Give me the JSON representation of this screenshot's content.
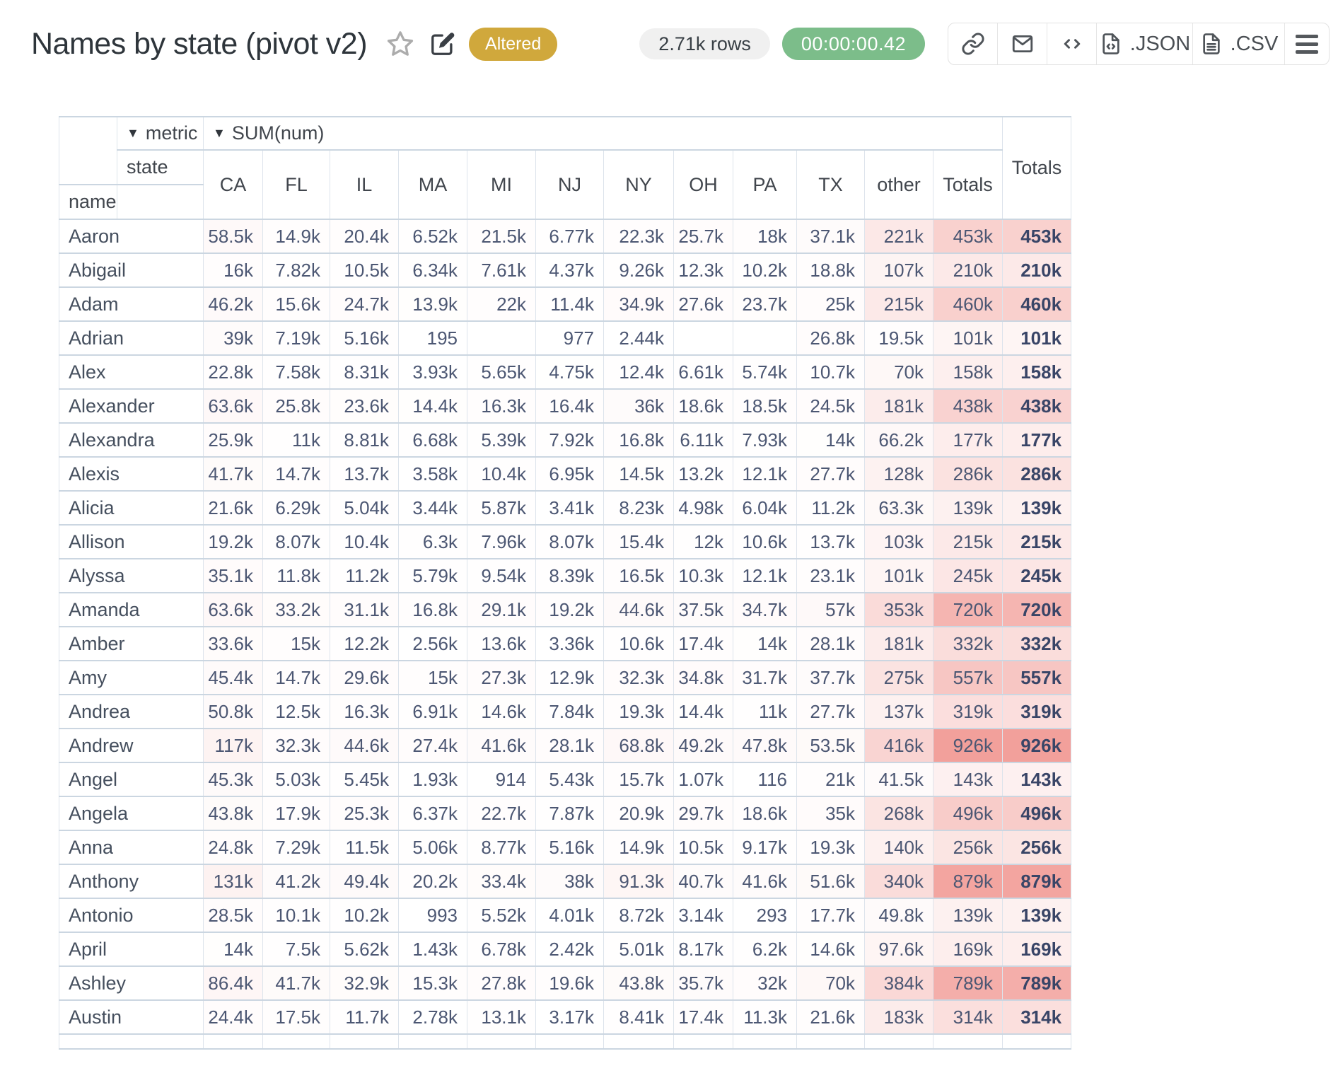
{
  "header": {
    "title": "Names by state (pivot v2)",
    "altered_badge": "Altered",
    "rows_pill": "2.71k rows",
    "timer_pill": "00:00:00.42",
    "export_json_label": ".JSON",
    "export_csv_label": ".CSV"
  },
  "colors": {
    "altered_badge_bg": "#D0A83C",
    "timer_pill_bg": "#7CBD8A",
    "heat_max": "#F2A09B",
    "grid_border": "#CBD6E1"
  },
  "pivot": {
    "caret": "▼",
    "metric_label": "metric",
    "value_label": "SUM(num)",
    "col_dim": "state",
    "row_dim": "name",
    "grand_total_label": "Totals",
    "columns": [
      "CA",
      "FL",
      "IL",
      "MA",
      "MI",
      "NJ",
      "NY",
      "OH",
      "PA",
      "TX",
      "other",
      "Totals"
    ],
    "rows": [
      {
        "name": "Aaron",
        "values": [
          "58.5k",
          "14.9k",
          "20.4k",
          "6.52k",
          "21.5k",
          "6.77k",
          "22.3k",
          "25.7k",
          "18k",
          "37.1k",
          "221k",
          "453k"
        ],
        "total": "453k"
      },
      {
        "name": "Abigail",
        "values": [
          "16k",
          "7.82k",
          "10.5k",
          "6.34k",
          "7.61k",
          "4.37k",
          "9.26k",
          "12.3k",
          "10.2k",
          "18.8k",
          "107k",
          "210k"
        ],
        "total": "210k"
      },
      {
        "name": "Adam",
        "values": [
          "46.2k",
          "15.6k",
          "24.7k",
          "13.9k",
          "22k",
          "11.4k",
          "34.9k",
          "27.6k",
          "23.7k",
          "25k",
          "215k",
          "460k"
        ],
        "total": "460k"
      },
      {
        "name": "Adrian",
        "values": [
          "39k",
          "7.19k",
          "5.16k",
          "195",
          "",
          "977",
          "2.44k",
          "",
          "",
          "26.8k",
          "19.5k",
          "101k"
        ],
        "total": "101k"
      },
      {
        "name": "Alex",
        "values": [
          "22.8k",
          "7.58k",
          "8.31k",
          "3.93k",
          "5.65k",
          "4.75k",
          "12.4k",
          "6.61k",
          "5.74k",
          "10.7k",
          "70k",
          "158k"
        ],
        "total": "158k"
      },
      {
        "name": "Alexander",
        "values": [
          "63.6k",
          "25.8k",
          "23.6k",
          "14.4k",
          "16.3k",
          "16.4k",
          "36k",
          "18.6k",
          "18.5k",
          "24.5k",
          "181k",
          "438k"
        ],
        "total": "438k"
      },
      {
        "name": "Alexandra",
        "values": [
          "25.9k",
          "11k",
          "8.81k",
          "6.68k",
          "5.39k",
          "7.92k",
          "16.8k",
          "6.11k",
          "7.93k",
          "14k",
          "66.2k",
          "177k"
        ],
        "total": "177k"
      },
      {
        "name": "Alexis",
        "values": [
          "41.7k",
          "14.7k",
          "13.7k",
          "3.58k",
          "10.4k",
          "6.95k",
          "14.5k",
          "13.2k",
          "12.1k",
          "27.7k",
          "128k",
          "286k"
        ],
        "total": "286k"
      },
      {
        "name": "Alicia",
        "values": [
          "21.6k",
          "6.29k",
          "5.04k",
          "3.44k",
          "5.87k",
          "3.41k",
          "8.23k",
          "4.98k",
          "6.04k",
          "11.2k",
          "63.3k",
          "139k"
        ],
        "total": "139k"
      },
      {
        "name": "Allison",
        "values": [
          "19.2k",
          "8.07k",
          "10.4k",
          "6.3k",
          "7.96k",
          "8.07k",
          "15.4k",
          "12k",
          "10.6k",
          "13.7k",
          "103k",
          "215k"
        ],
        "total": "215k"
      },
      {
        "name": "Alyssa",
        "values": [
          "35.1k",
          "11.8k",
          "11.2k",
          "5.79k",
          "9.54k",
          "8.39k",
          "16.5k",
          "10.3k",
          "12.1k",
          "23.1k",
          "101k",
          "245k"
        ],
        "total": "245k"
      },
      {
        "name": "Amanda",
        "values": [
          "63.6k",
          "33.2k",
          "31.1k",
          "16.8k",
          "29.1k",
          "19.2k",
          "44.6k",
          "37.5k",
          "34.7k",
          "57k",
          "353k",
          "720k"
        ],
        "total": "720k"
      },
      {
        "name": "Amber",
        "values": [
          "33.6k",
          "15k",
          "12.2k",
          "2.56k",
          "13.6k",
          "3.36k",
          "10.6k",
          "17.4k",
          "14k",
          "28.1k",
          "181k",
          "332k"
        ],
        "total": "332k"
      },
      {
        "name": "Amy",
        "values": [
          "45.4k",
          "14.7k",
          "29.6k",
          "15k",
          "27.3k",
          "12.9k",
          "32.3k",
          "34.8k",
          "31.7k",
          "37.7k",
          "275k",
          "557k"
        ],
        "total": "557k"
      },
      {
        "name": "Andrea",
        "values": [
          "50.8k",
          "12.5k",
          "16.3k",
          "6.91k",
          "14.6k",
          "7.84k",
          "19.3k",
          "14.4k",
          "11k",
          "27.7k",
          "137k",
          "319k"
        ],
        "total": "319k"
      },
      {
        "name": "Andrew",
        "values": [
          "117k",
          "32.3k",
          "44.6k",
          "27.4k",
          "41.6k",
          "28.1k",
          "68.8k",
          "49.2k",
          "47.8k",
          "53.5k",
          "416k",
          "926k"
        ],
        "total": "926k"
      },
      {
        "name": "Angel",
        "values": [
          "45.3k",
          "5.03k",
          "5.45k",
          "1.93k",
          "914",
          "5.43k",
          "15.7k",
          "1.07k",
          "116",
          "21k",
          "41.5k",
          "143k"
        ],
        "total": "143k"
      },
      {
        "name": "Angela",
        "values": [
          "43.8k",
          "17.9k",
          "25.3k",
          "6.37k",
          "22.7k",
          "7.87k",
          "20.9k",
          "29.7k",
          "18.6k",
          "35k",
          "268k",
          "496k"
        ],
        "total": "496k"
      },
      {
        "name": "Anna",
        "values": [
          "24.8k",
          "7.29k",
          "11.5k",
          "5.06k",
          "8.77k",
          "5.16k",
          "14.9k",
          "10.5k",
          "9.17k",
          "19.3k",
          "140k",
          "256k"
        ],
        "total": "256k"
      },
      {
        "name": "Anthony",
        "values": [
          "131k",
          "41.2k",
          "49.4k",
          "20.2k",
          "33.4k",
          "38k",
          "91.3k",
          "40.7k",
          "41.6k",
          "51.6k",
          "340k",
          "879k"
        ],
        "total": "879k"
      },
      {
        "name": "Antonio",
        "values": [
          "28.5k",
          "10.1k",
          "10.2k",
          "993",
          "5.52k",
          "4.01k",
          "8.72k",
          "3.14k",
          "293",
          "17.7k",
          "49.8k",
          "139k"
        ],
        "total": "139k"
      },
      {
        "name": "April",
        "values": [
          "14k",
          "7.5k",
          "5.62k",
          "1.43k",
          "6.78k",
          "2.42k",
          "5.01k",
          "8.17k",
          "6.2k",
          "14.6k",
          "97.6k",
          "169k"
        ],
        "total": "169k"
      },
      {
        "name": "Ashley",
        "values": [
          "86.4k",
          "41.7k",
          "32.9k",
          "15.3k",
          "27.8k",
          "19.6k",
          "43.8k",
          "35.7k",
          "32k",
          "70k",
          "384k",
          "789k"
        ],
        "total": "789k"
      },
      {
        "name": "Austin",
        "values": [
          "24.4k",
          "17.5k",
          "11.7k",
          "2.78k",
          "13.1k",
          "3.17k",
          "8.41k",
          "17.4k",
          "11.3k",
          "21.6k",
          "183k",
          "314k"
        ],
        "total": "314k"
      }
    ]
  }
}
